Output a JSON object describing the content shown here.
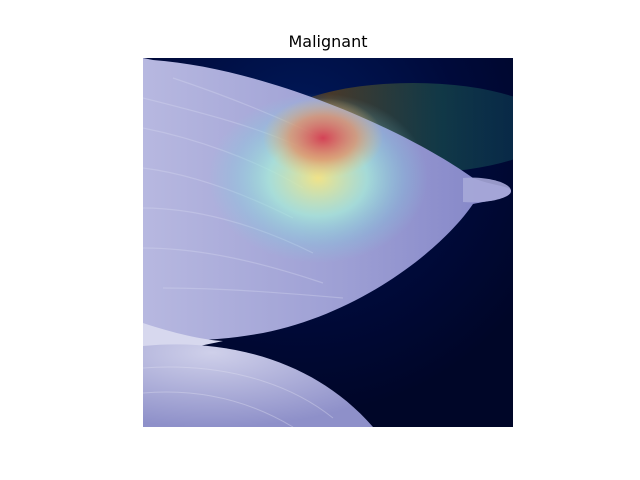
{
  "figure": {
    "title": "Malignant"
  },
  "image": {
    "content": "mammogram-heatmap",
    "colors": {
      "background": "#000836",
      "tissue": "#9c9ed2",
      "hotspot": "#cc3b4e",
      "warm": "#e8d77e",
      "cool": "#7fe3d8"
    }
  }
}
